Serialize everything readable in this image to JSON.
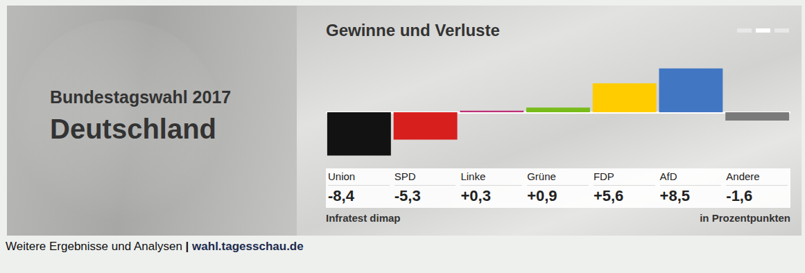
{
  "panel": {
    "supertitle": "Bundestagswahl 2017",
    "heading": "Deutschland"
  },
  "chart_data": {
    "type": "bar",
    "title": "Gewinne und Verluste",
    "categories": [
      "Union",
      "SPD",
      "Linke",
      "Grüne",
      "FDP",
      "AfD",
      "Andere"
    ],
    "values": [
      -8.4,
      -5.3,
      0.3,
      0.9,
      5.6,
      8.5,
      -1.6
    ],
    "value_labels": [
      "-8,4",
      "-5,3",
      "+0,3",
      "+0,9",
      "+5,6",
      "+8,5",
      "-1,6"
    ],
    "colors": [
      "#121212",
      "#d71f1d",
      "#be3075",
      "#78bc1b",
      "#ffcc00",
      "#4176c2",
      "#7a7a7a"
    ],
    "ylim": [
      -9,
      9
    ],
    "data_labels": true,
    "tick_labels": false,
    "grid": false,
    "source": "Infratest dimap",
    "unit_note": "in Prozentpunkten"
  },
  "footer": {
    "text": "Weitere Ergebnisse und Analysen",
    "separator": "|",
    "link": "wahl.tagesschau.de"
  }
}
